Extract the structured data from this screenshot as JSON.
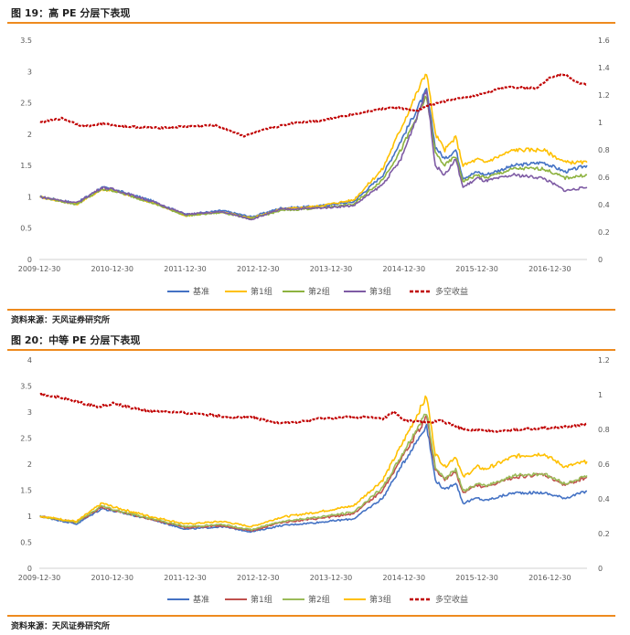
{
  "figures": [
    {
      "title": "图 19：高 PE 分层下表现",
      "source": "资料来源：天风证券研究所"
    },
    {
      "title": "图 20：中等 PE 分层下表现",
      "source": "资料来源：天风证券研究所"
    }
  ],
  "chart_data": [
    {
      "type": "line",
      "title": "",
      "x_ticks": [
        "2009-12-30",
        "2010-12-30",
        "2011-12-30",
        "2012-12-30",
        "2013-12-30",
        "2014-12-30",
        "2015-12-30",
        "2016-12-30"
      ],
      "x_range": [
        2009.99,
        2017.5
      ],
      "y_left": {
        "min": 0,
        "max": 3.5,
        "ticks": [
          "0",
          "0.5",
          "1",
          "1.5",
          "2",
          "2.5",
          "3",
          "3.5"
        ]
      },
      "y_right": {
        "min": 0,
        "max": 1.6,
        "ticks": [
          "0",
          "0.2",
          "0.4",
          "0.6",
          "0.8",
          "1",
          "1.2",
          "1.4",
          "1.6"
        ]
      },
      "grid": false,
      "legend_position": "bottom",
      "series": [
        {
          "name": "基准",
          "axis": "left",
          "color": "#4472c4",
          "style": "solid",
          "x": [
            2010.0,
            2010.5,
            2010.85,
            2011.0,
            2011.5,
            2012.0,
            2012.5,
            2012.9,
            2013.3,
            2013.8,
            2014.3,
            2014.7,
            2014.95,
            2015.3,
            2015.42,
            2015.55,
            2015.7,
            2015.8,
            2016.0,
            2016.1,
            2016.5,
            2016.9,
            2017.2,
            2017.5
          ],
          "y": [
            1.0,
            0.9,
            1.15,
            1.12,
            0.95,
            0.72,
            0.78,
            0.68,
            0.82,
            0.85,
            0.92,
            1.35,
            1.9,
            2.7,
            1.8,
            1.6,
            1.75,
            1.3,
            1.4,
            1.35,
            1.5,
            1.55,
            1.4,
            1.5
          ]
        },
        {
          "name": "第1组",
          "axis": "left",
          "color": "#ffc000",
          "style": "solid",
          "x": [
            2010.0,
            2010.5,
            2010.85,
            2011.0,
            2011.5,
            2012.0,
            2012.5,
            2012.9,
            2013.3,
            2013.8,
            2014.3,
            2014.7,
            2014.95,
            2015.3,
            2015.42,
            2015.55,
            2015.7,
            2015.8,
            2016.0,
            2016.1,
            2016.5,
            2016.9,
            2017.2,
            2017.5
          ],
          "y": [
            1.0,
            0.88,
            1.12,
            1.1,
            0.92,
            0.7,
            0.76,
            0.66,
            0.8,
            0.85,
            0.95,
            1.45,
            2.1,
            3.0,
            2.0,
            1.75,
            1.95,
            1.5,
            1.6,
            1.55,
            1.75,
            1.75,
            1.55,
            1.55
          ]
        },
        {
          "name": "第2组",
          "axis": "left",
          "color": "#8db23f",
          "style": "solid",
          "x": [
            2010.0,
            2010.5,
            2010.85,
            2011.0,
            2011.5,
            2012.0,
            2012.5,
            2012.9,
            2013.3,
            2013.8,
            2014.3,
            2014.7,
            2014.95,
            2015.3,
            2015.42,
            2015.55,
            2015.7,
            2015.8,
            2016.0,
            2016.1,
            2016.5,
            2016.9,
            2017.2,
            2017.5
          ],
          "y": [
            1.0,
            0.88,
            1.12,
            1.1,
            0.92,
            0.7,
            0.75,
            0.65,
            0.78,
            0.82,
            0.88,
            1.28,
            1.75,
            2.6,
            1.7,
            1.5,
            1.65,
            1.25,
            1.35,
            1.3,
            1.45,
            1.45,
            1.3,
            1.35
          ]
        },
        {
          "name": "第3组",
          "axis": "left",
          "color": "#7e5ba4",
          "style": "solid",
          "x": [
            2010.0,
            2010.5,
            2010.85,
            2011.0,
            2011.5,
            2012.0,
            2012.5,
            2012.9,
            2013.3,
            2013.8,
            2014.3,
            2014.7,
            2014.95,
            2015.3,
            2015.42,
            2015.55,
            2015.7,
            2015.8,
            2016.0,
            2016.1,
            2016.5,
            2016.9,
            2017.2,
            2017.5
          ],
          "y": [
            1.0,
            0.9,
            1.15,
            1.12,
            0.94,
            0.72,
            0.76,
            0.64,
            0.8,
            0.82,
            0.86,
            1.2,
            1.6,
            2.7,
            1.5,
            1.35,
            1.6,
            1.15,
            1.3,
            1.25,
            1.35,
            1.3,
            1.1,
            1.15
          ]
        },
        {
          "name": "多空收益",
          "axis": "right",
          "color": "#c00000",
          "style": "dashed",
          "x": [
            2010.0,
            2010.3,
            2010.6,
            2010.85,
            2011.2,
            2011.6,
            2012.0,
            2012.4,
            2012.6,
            2012.8,
            2013.1,
            2013.5,
            2013.8,
            2014.1,
            2014.4,
            2014.7,
            2014.9,
            2015.15,
            2015.3,
            2015.6,
            2016.0,
            2016.4,
            2016.8,
            2017.0,
            2017.2,
            2017.4,
            2017.5
          ],
          "y": [
            1.0,
            1.03,
            0.97,
            0.99,
            0.97,
            0.96,
            0.97,
            0.98,
            0.94,
            0.9,
            0.95,
            1.0,
            1.01,
            1.04,
            1.07,
            1.1,
            1.11,
            1.08,
            1.12,
            1.16,
            1.2,
            1.26,
            1.25,
            1.33,
            1.35,
            1.28,
            1.28
          ]
        }
      ]
    },
    {
      "type": "line",
      "title": "",
      "x_ticks": [
        "2009-12-30",
        "2010-12-30",
        "2011-12-30",
        "2012-12-30",
        "2013-12-30",
        "2014-12-30",
        "2015-12-30",
        "2016-12-30"
      ],
      "x_range": [
        2009.99,
        2017.5
      ],
      "y_left": {
        "min": 0,
        "max": 4,
        "ticks": [
          "0",
          "0.5",
          "1",
          "1.5",
          "2",
          "2.5",
          "3",
          "3.5",
          "4"
        ]
      },
      "y_right": {
        "min": 0,
        "max": 1.2,
        "ticks": [
          "0",
          "0.2",
          "0.4",
          "0.6",
          "0.8",
          "1",
          "1.2"
        ]
      },
      "grid": false,
      "legend_position": "bottom",
      "series": [
        {
          "name": "基准",
          "axis": "left",
          "color": "#4472c4",
          "style": "solid",
          "x": [
            2010.0,
            2010.5,
            2010.85,
            2011.0,
            2011.5,
            2012.0,
            2012.5,
            2012.9,
            2013.3,
            2013.8,
            2014.3,
            2014.7,
            2014.95,
            2015.3,
            2015.42,
            2015.55,
            2015.7,
            2015.8,
            2016.0,
            2016.1,
            2016.5,
            2016.9,
            2017.2,
            2017.5
          ],
          "y": [
            1.0,
            0.85,
            1.15,
            1.1,
            0.95,
            0.75,
            0.8,
            0.7,
            0.82,
            0.88,
            0.95,
            1.35,
            1.95,
            2.75,
            1.7,
            1.5,
            1.65,
            1.25,
            1.35,
            1.3,
            1.45,
            1.45,
            1.35,
            1.48
          ]
        },
        {
          "name": "第1组",
          "axis": "left",
          "color": "#c0504d",
          "style": "solid",
          "x": [
            2010.0,
            2010.5,
            2010.85,
            2011.0,
            2011.5,
            2012.0,
            2012.5,
            2012.9,
            2013.3,
            2013.8,
            2014.3,
            2014.7,
            2014.95,
            2015.3,
            2015.42,
            2015.55,
            2015.7,
            2015.8,
            2016.0,
            2016.1,
            2016.5,
            2016.9,
            2017.2,
            2017.5
          ],
          "y": [
            1.0,
            0.88,
            1.18,
            1.12,
            0.95,
            0.78,
            0.82,
            0.72,
            0.88,
            0.95,
            1.05,
            1.5,
            2.1,
            2.9,
            1.9,
            1.7,
            1.85,
            1.45,
            1.6,
            1.55,
            1.75,
            1.8,
            1.6,
            1.75
          ]
        },
        {
          "name": "第2组",
          "axis": "left",
          "color": "#9bbb59",
          "style": "solid",
          "x": [
            2010.0,
            2010.5,
            2010.85,
            2011.0,
            2011.5,
            2012.0,
            2012.5,
            2012.9,
            2013.3,
            2013.8,
            2014.3,
            2014.7,
            2014.95,
            2015.3,
            2015.42,
            2015.55,
            2015.7,
            2015.8,
            2016.0,
            2016.1,
            2016.5,
            2016.9,
            2017.2,
            2017.5
          ],
          "y": [
            1.0,
            0.88,
            1.2,
            1.13,
            0.96,
            0.8,
            0.84,
            0.74,
            0.9,
            0.98,
            1.08,
            1.55,
            2.15,
            3.0,
            1.95,
            1.72,
            1.9,
            1.48,
            1.62,
            1.58,
            1.78,
            1.82,
            1.62,
            1.78
          ]
        },
        {
          "name": "第3组",
          "axis": "left",
          "color": "#ffc000",
          "style": "solid",
          "x": [
            2010.0,
            2010.5,
            2010.85,
            2011.0,
            2011.5,
            2012.0,
            2012.5,
            2012.9,
            2013.3,
            2013.8,
            2014.3,
            2014.7,
            2014.95,
            2015.3,
            2015.42,
            2015.55,
            2015.7,
            2015.8,
            2016.0,
            2016.1,
            2016.5,
            2016.9,
            2017.2,
            2017.5
          ],
          "y": [
            1.0,
            0.9,
            1.25,
            1.18,
            1.0,
            0.85,
            0.9,
            0.8,
            0.98,
            1.08,
            1.2,
            1.7,
            2.35,
            3.3,
            2.2,
            1.95,
            2.15,
            1.75,
            1.95,
            1.9,
            2.15,
            2.2,
            1.95,
            2.05
          ]
        },
        {
          "name": "多空收益",
          "axis": "right",
          "color": "#c00000",
          "style": "dashed",
          "x": [
            2010.0,
            2010.2,
            2010.5,
            2010.8,
            2011.0,
            2011.4,
            2011.8,
            2012.2,
            2012.6,
            2012.9,
            2013.2,
            2013.5,
            2013.8,
            2014.2,
            2014.5,
            2014.7,
            2014.85,
            2015.0,
            2015.3,
            2015.5,
            2015.8,
            2016.2,
            2016.6,
            2017.0,
            2017.3,
            2017.5
          ],
          "y": [
            1.0,
            0.99,
            0.96,
            0.93,
            0.95,
            0.91,
            0.9,
            0.89,
            0.87,
            0.87,
            0.84,
            0.84,
            0.86,
            0.87,
            0.87,
            0.86,
            0.9,
            0.85,
            0.84,
            0.85,
            0.8,
            0.79,
            0.8,
            0.81,
            0.82,
            0.83
          ]
        }
      ]
    }
  ]
}
